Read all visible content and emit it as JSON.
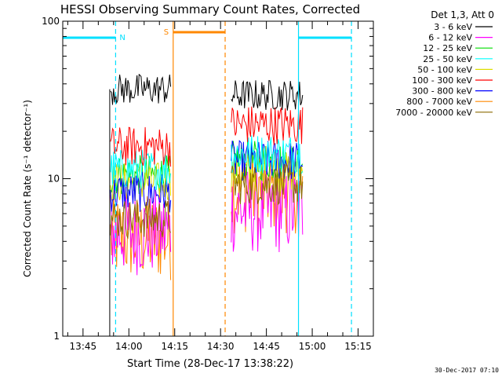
{
  "chart_data": {
    "type": "line",
    "title": "HESSI Observing Summary Count Rates, Corrected",
    "xlabel": "Start Time (28-Dec-17 13:38:22)",
    "ylabel": "Corrected Count Rate (s⁻¹ detector⁻¹)",
    "yscale": "log",
    "ylim": [
      1,
      100
    ],
    "xlim": [
      "13:38:22",
      "15:20:00"
    ],
    "xticks": [
      "13:45",
      "14:00",
      "14:15",
      "14:30",
      "14:45",
      "15:00",
      "15:15"
    ],
    "yticks": [
      "1",
      "10",
      "100"
    ],
    "grid": false,
    "legend": {
      "placement": "outside-right",
      "header": "Det 1,3, Att 0"
    },
    "footer_date": "30-Dec-2017 07:10",
    "annotations": [
      {
        "label": "N",
        "color": "#00e0ff",
        "bar_start": "13:38:22",
        "bar_end": "13:55:40",
        "dashed_line": "13:55:40"
      },
      {
        "label": "S",
        "color": "#ff8800",
        "solid_line": "14:14:30",
        "bar_start": "14:14:30",
        "bar_end": "14:31:30",
        "dashed_line": "14:31:30"
      },
      {
        "label": "",
        "color": "#00e0ff",
        "solid_line": "14:55:30",
        "bar_start": "14:55:30",
        "bar_end": "15:12:50",
        "dashed_line": "15:12:50"
      }
    ],
    "segments": [
      {
        "start": "13:54:00",
        "end": "14:14:00"
      },
      {
        "start": "14:33:30",
        "end": "14:57:00"
      }
    ],
    "series": [
      {
        "name": "3 - 6 keV",
        "color": "#000000",
        "values": [
          37,
          34
        ]
      },
      {
        "name": "6 - 12 keV",
        "color": "#ff00ff",
        "values": [
          4.6,
          6.3
        ]
      },
      {
        "name": "12 - 25 keV",
        "color": "#00dd00",
        "values": [
          10.5,
          13
        ]
      },
      {
        "name": "25 - 50 keV",
        "color": "#00ffff",
        "values": [
          11.5,
          14.5
        ]
      },
      {
        "name": "50 - 100 keV",
        "color": "#dddd00",
        "values": [
          9.5,
          11
        ]
      },
      {
        "name": "100 - 300 keV",
        "color": "#ff0000",
        "values": [
          16,
          22
        ]
      },
      {
        "name": "300 - 800 keV",
        "color": "#0000ff",
        "values": [
          8.2,
          13
        ]
      },
      {
        "name": "800 - 7000 keV",
        "color": "#ff8800",
        "values": [
          4.2,
          8.5
        ]
      },
      {
        "name": "7000 - 20000 keV",
        "color": "#8b6a00",
        "values": [
          5.6,
          9.2
        ]
      }
    ]
  }
}
